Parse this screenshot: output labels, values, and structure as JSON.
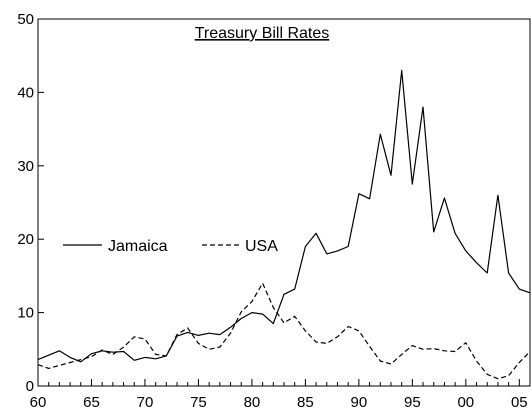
{
  "chart_data": {
    "type": "line",
    "title": "Treasury Bill Rates",
    "xlabel": "",
    "ylabel": "",
    "xlim": [
      1960,
      2006
    ],
    "ylim": [
      0,
      50
    ],
    "x_ticks": [
      1960,
      1965,
      1970,
      1975,
      1980,
      1985,
      1990,
      1995,
      2000,
      2005
    ],
    "x_tick_labels": [
      "60",
      "65",
      "70",
      "75",
      "80",
      "85",
      "90",
      "95",
      "00",
      "05"
    ],
    "y_ticks": [
      0,
      10,
      20,
      30,
      40,
      50
    ],
    "y_tick_labels": [
      "0",
      "10",
      "20",
      "30",
      "40",
      "50"
    ],
    "grid": false,
    "legend_position": "center-left",
    "x": [
      1960,
      1961,
      1962,
      1963,
      1964,
      1965,
      1966,
      1967,
      1968,
      1969,
      1970,
      1971,
      1972,
      1973,
      1974,
      1975,
      1976,
      1977,
      1978,
      1979,
      1980,
      1981,
      1982,
      1983,
      1984,
      1985,
      1986,
      1987,
      1988,
      1989,
      1990,
      1991,
      1992,
      1993,
      1994,
      1995,
      1996,
      1997,
      1998,
      1999,
      2000,
      2001,
      2002,
      2003,
      2004,
      2005,
      2006
    ],
    "series": [
      {
        "name": "Jamaica",
        "style": "solid",
        "color": "#000000",
        "values": [
          3.6,
          4.2,
          4.8,
          3.9,
          3.3,
          4.4,
          4.8,
          4.6,
          4.7,
          3.5,
          3.9,
          3.7,
          4.1,
          6.8,
          7.3,
          6.9,
          7.2,
          7.0,
          8.0,
          9.2,
          10.0,
          9.8,
          8.5,
          12.5,
          13.2,
          19.0,
          20.8,
          18.0,
          18.4,
          19.0,
          26.2,
          25.5,
          34.3,
          28.7,
          43.0,
          27.5,
          38.0,
          21.0,
          25.6,
          20.8,
          18.4,
          16.8,
          15.4,
          26.0,
          15.4,
          13.2,
          12.7
        ]
      },
      {
        "name": "USA",
        "style": "dashed",
        "color": "#000000",
        "values": [
          2.9,
          2.4,
          2.8,
          3.2,
          3.6,
          4.0,
          4.9,
          4.3,
          5.3,
          6.7,
          6.4,
          4.3,
          4.1,
          7.0,
          7.9,
          5.8,
          5.0,
          5.3,
          7.2,
          10.1,
          11.5,
          14.0,
          10.7,
          8.6,
          9.5,
          7.5,
          6.0,
          5.8,
          6.7,
          8.1,
          7.5,
          5.4,
          3.4,
          3.0,
          4.3,
          5.5,
          5.0,
          5.1,
          4.8,
          4.7,
          5.9,
          3.4,
          1.6,
          1.0,
          1.4,
          3.2,
          4.7
        ]
      }
    ]
  }
}
